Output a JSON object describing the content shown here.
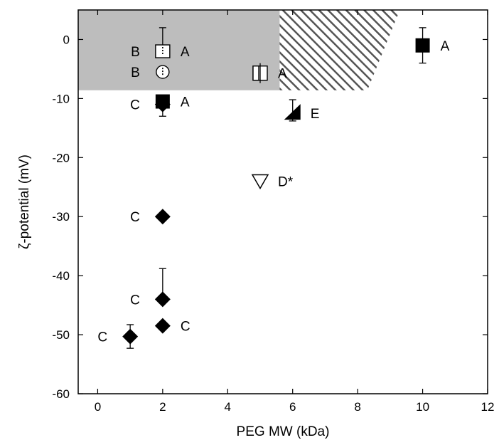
{
  "chart_data": {
    "type": "scatter",
    "title": "",
    "xlabel": "PEG MW (kDa)",
    "ylabel": "ζ-potential (mV)",
    "xlim": [
      -0.6,
      12
    ],
    "ylim": [
      -60,
      5
    ],
    "x_ticks": [
      0,
      2,
      4,
      6,
      8,
      10,
      12
    ],
    "y_ticks": [
      0,
      -10,
      -20,
      -30,
      -40,
      -50,
      -60
    ],
    "x_tick_labels": [
      "0",
      "2",
      "4",
      "6",
      "8",
      "10",
      "12"
    ],
    "y_tick_labels": [
      "0",
      "-10",
      "-20",
      "-30",
      "-40",
      "-50",
      "-60"
    ],
    "grid": false,
    "legend": "none",
    "shaded_regions": [
      {
        "kind": "solid-gray",
        "x": [
          -0.6,
          5.6
        ],
        "y": [
          -8.6,
          5
        ],
        "color": "#bdbdbd"
      },
      {
        "kind": "hatched",
        "x_bottom": [
          5.6,
          8.3
        ],
        "x_top": [
          5.6,
          9.3
        ],
        "y": [
          -8.6,
          5
        ],
        "color": "#555555"
      }
    ],
    "points": [
      {
        "x": 2,
        "y": -2,
        "marker": "square-dotted",
        "label": "A",
        "label_side": "right",
        "err_up": 4,
        "err_down": 0
      },
      {
        "x": 2,
        "y": -5.5,
        "marker": "circle-dotted",
        "label": "B",
        "label_side": "left",
        "err_up": 0,
        "err_down": 0
      },
      {
        "x": 2,
        "y": -10.5,
        "marker": "square-filled",
        "label": "A",
        "label_side": "right",
        "err_up": 0,
        "err_down": 0
      },
      {
        "x": 2,
        "y": -11,
        "marker": "diamond-filled",
        "label": "C",
        "label_side": "left",
        "err_up": 0,
        "err_down": 2
      },
      {
        "x": 5,
        "y": -5.7,
        "marker": "square-half",
        "label": "A",
        "label_side": "right",
        "err_up": 0,
        "err_down": 0
      },
      {
        "x": 6,
        "y": -12.5,
        "marker": "triangle-half",
        "label": "E",
        "label_side": "right",
        "err_up": 2.3,
        "err_down": 1.3
      },
      {
        "x": 5,
        "y": -24,
        "marker": "triangle-down-open",
        "label": "D*",
        "label_side": "right",
        "err_up": 0,
        "err_down": 0
      },
      {
        "x": 2,
        "y": -30,
        "marker": "diamond-filled",
        "label": "C",
        "label_side": "left",
        "err_up": 0,
        "err_down": 0
      },
      {
        "x": 2,
        "y": -44,
        "marker": "diamond-filled",
        "label": "C",
        "label_side": "left",
        "err_up": 5.2,
        "err_down": 0
      },
      {
        "x": 2,
        "y": -48.5,
        "marker": "diamond-filled",
        "label": "C",
        "label_side": "right",
        "err_up": 0,
        "err_down": 0
      },
      {
        "x": 1,
        "y": -50.3,
        "marker": "diamond-filled",
        "label": "C",
        "label_side": "left",
        "err_up": 2,
        "err_down": 2
      },
      {
        "x": 10,
        "y": -1,
        "marker": "square-filled",
        "label": "A",
        "label_side": "right",
        "err_up": 3,
        "err_down": 3
      }
    ],
    "label_on_left_B_extra": {
      "x": 2,
      "y": -2,
      "label": "B"
    }
  }
}
